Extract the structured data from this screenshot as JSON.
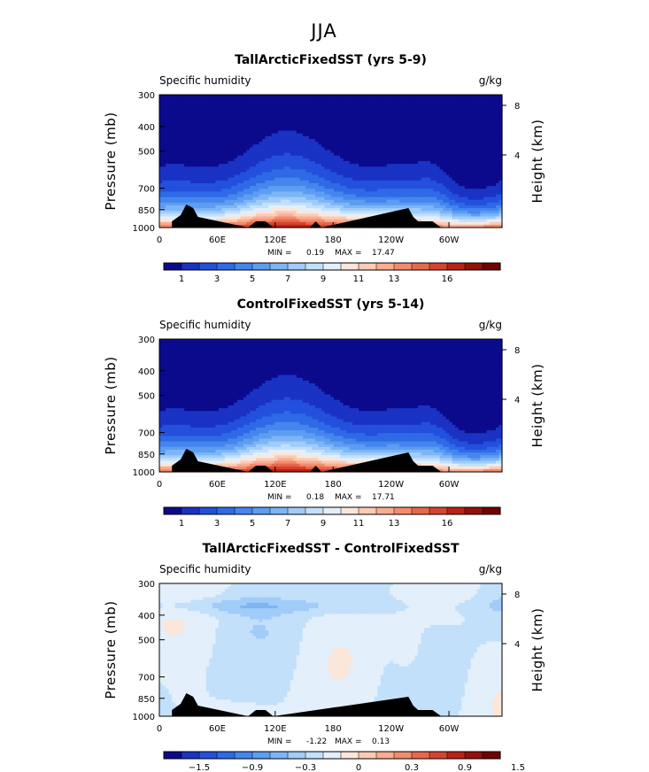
{
  "supertitle": "JJA",
  "colors": [
    "#0c0a8c",
    "#1a33c4",
    "#2350dc",
    "#2f6ae6",
    "#4586ee",
    "#5d9df2",
    "#7db5f6",
    "#a1ccf9",
    "#c3e0fb",
    "#e3effa",
    "#fbe6da",
    "#fbcbb4",
    "#f9ad91",
    "#f38c6c",
    "#e8684c",
    "#d64430",
    "#bb2218",
    "#961109",
    "#6e0404"
  ],
  "chart_data": [
    {
      "type": "heatmap",
      "title": "TallArcticFixedSST (yrs 5-9)",
      "left_label": "Specific humidity",
      "right_label": "g/kg",
      "ylabel": "Pressure (mb)",
      "y2label": "Height (km)",
      "x_ticks": [
        "0",
        "60E",
        "120E",
        "180",
        "120W",
        "60W"
      ],
      "y_ticks": [
        "300",
        "400",
        "500",
        "700",
        "850",
        "1000"
      ],
      "y2_ticks": [
        "8",
        "4"
      ],
      "min_label": "MIN =",
      "min_value": "0.19",
      "max_label": "MAX =",
      "max_value": "17.47",
      "colorbar_ticks": [
        "1",
        "3",
        "5",
        "7",
        "9",
        "11",
        "13",
        "16"
      ],
      "field": "absolute"
    },
    {
      "type": "heatmap",
      "title": "ControlFixedSST (yrs 5-14)",
      "left_label": "Specific humidity",
      "right_label": "g/kg",
      "ylabel": "Pressure (mb)",
      "y2label": "Height (km)",
      "x_ticks": [
        "0",
        "60E",
        "120E",
        "180",
        "120W",
        "60W"
      ],
      "y_ticks": [
        "300",
        "400",
        "500",
        "700",
        "850",
        "1000"
      ],
      "y2_ticks": [
        "8",
        "4"
      ],
      "min_label": "MIN =",
      "min_value": "0.18",
      "max_label": "MAX =",
      "max_value": "17.71",
      "colorbar_ticks": [
        "1",
        "3",
        "5",
        "7",
        "9",
        "11",
        "13",
        "16"
      ],
      "field": "absolute"
    },
    {
      "type": "heatmap",
      "title": "TallArcticFixedSST - ControlFixedSST",
      "left_label": "Specific humidity",
      "right_label": "g/kg",
      "ylabel": "Pressure (mb)",
      "y2label": "Height (km)",
      "x_ticks": [
        "0",
        "60E",
        "120E",
        "180",
        "120W",
        "60W"
      ],
      "y_ticks": [
        "300",
        "400",
        "500",
        "700",
        "850",
        "1000"
      ],
      "y2_ticks": [
        "8",
        "4"
      ],
      "min_label": "MIN =",
      "min_value": "-1.22",
      "max_label": "MAX =",
      "max_value": "0.13",
      "colorbar_ticks": [
        "−1.5",
        "−0.9",
        "−0.3",
        "0",
        "0.3",
        "0.9",
        "1.5"
      ],
      "field": "difference"
    }
  ]
}
